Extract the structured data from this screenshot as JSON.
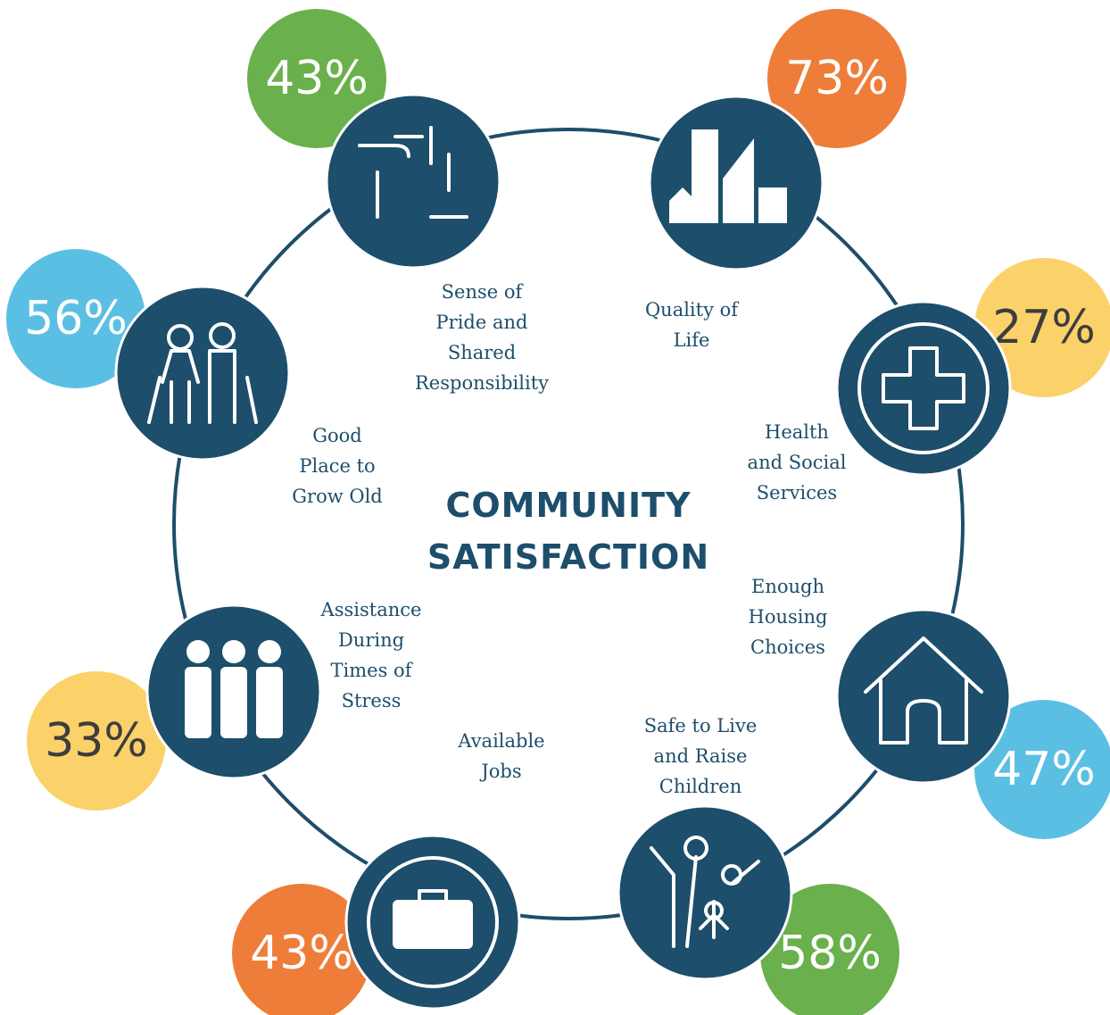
{
  "title": [
    "COMMUNITY",
    "SATISFACTION"
  ],
  "items": [
    {
      "label": [
        "Sense of",
        "Pride and",
        "Shared",
        "Responsibility"
      ],
      "value": "43%",
      "color": "#6ab04c"
    },
    {
      "label": [
        "Quality of",
        "Life"
      ],
      "value": "73%",
      "color": "#ee7d3a"
    },
    {
      "label": [
        "Health",
        "and Social",
        "Services"
      ],
      "value": "27%",
      "color": "#fbd16a"
    },
    {
      "label": [
        "Enough",
        "Housing",
        "Choices"
      ],
      "value": "47%",
      "color": "#5bbfe3"
    },
    {
      "label": [
        "Safe to Live",
        "and Raise",
        "Children"
      ],
      "value": "58%",
      "color": "#6ab04c"
    },
    {
      "label": [
        "Available",
        "Jobs"
      ],
      "value": "43%",
      "color": "#ee7d3a"
    },
    {
      "label": [
        "Assistance",
        "During",
        "Times of",
        "Stress"
      ],
      "value": "33%",
      "color": "#fbd16a"
    },
    {
      "label": [
        "Good",
        "Place to",
        "Grow Old"
      ],
      "value": "56%",
      "color": "#5bbfe3"
    }
  ]
}
